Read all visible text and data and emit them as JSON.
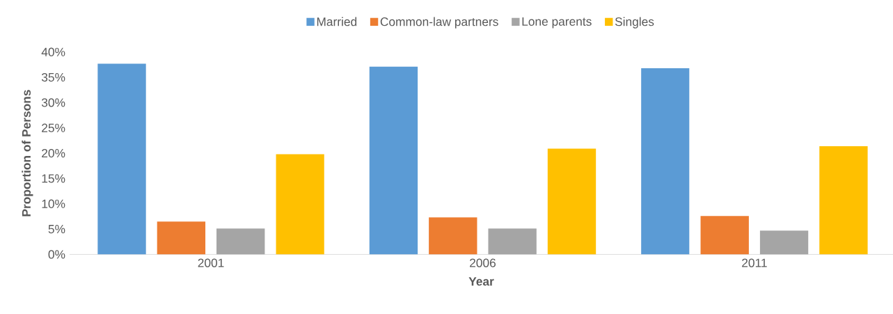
{
  "chart_data": {
    "type": "bar",
    "xlabel": "Year",
    "ylabel": "Proportion  of Persons",
    "categories": [
      "2001",
      "2006",
      "2011"
    ],
    "series": [
      {
        "name": "Married",
        "color": "#5b9bd5",
        "values": [
          37.7,
          37.1,
          36.8
        ]
      },
      {
        "name": "Common-law partners",
        "color": "#ed7d31",
        "values": [
          6.5,
          7.3,
          7.6
        ]
      },
      {
        "name": "Lone parents",
        "color": "#a5a5a5",
        "values": [
          5.1,
          5.1,
          4.7
        ]
      },
      {
        "name": "Singles",
        "color": "#ffc000",
        "values": [
          19.8,
          20.9,
          21.4
        ]
      }
    ],
    "ylim": [
      0,
      40
    ],
    "yticks": [
      {
        "value": 0,
        "label": "0%"
      },
      {
        "value": 5,
        "label": "5%"
      },
      {
        "value": 10,
        "label": "10%"
      },
      {
        "value": 15,
        "label": "15%"
      },
      {
        "value": 20,
        "label": "20%"
      },
      {
        "value": 25,
        "label": "25%"
      },
      {
        "value": 30,
        "label": "30%"
      },
      {
        "value": 35,
        "label": "35%"
      },
      {
        "value": 40,
        "label": "40%"
      }
    ],
    "grid": false,
    "legend": "top"
  }
}
